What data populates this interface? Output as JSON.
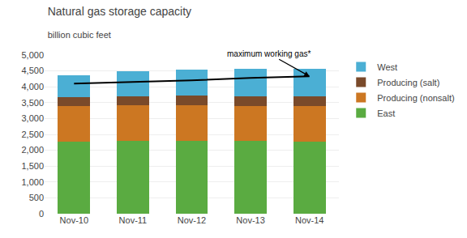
{
  "chart_data": {
    "type": "bar",
    "stacked": true,
    "title": "Natural gas storage capacity",
    "subtitle": "billion cubic feet",
    "categories": [
      "Nov-10",
      "Nov-11",
      "Nov-12",
      "Nov-13",
      "Nov-14"
    ],
    "series": [
      {
        "name": "East",
        "color": "#5aab41",
        "values": [
          2270,
          2300,
          2290,
          2300,
          2280
        ]
      },
      {
        "name": "Producing (nonsalt)",
        "color": "#cc7722",
        "values": [
          1130,
          1120,
          1140,
          1100,
          1110
        ]
      },
      {
        "name": "Producing (salt)",
        "color": "#7a4a2a",
        "values": [
          280,
          270,
          290,
          300,
          310
        ]
      },
      {
        "name": "West",
        "color": "#4bafd4",
        "values": [
          680,
          810,
          830,
          870,
          870
        ]
      },
      {
        "type": "line",
        "color": "#000000",
        "values": [
          4100,
          4150,
          4200,
          4280,
          4330
        ]
      }
    ],
    "annotations": [
      {
        "text": "maximum working gas*",
        "x": "Nov-14",
        "y": 4330
      }
    ],
    "ylim": [
      0,
      5000
    ],
    "yticks": [
      0,
      500,
      {
        "value": 1000,
        "label": "1,000"
      },
      {
        "value": 1500,
        "label": "1,500"
      },
      {
        "value": 2000,
        "label": "2,000"
      },
      {
        "value": 2500,
        "label": "2,500"
      },
      {
        "value": 3000,
        "label": "3,000"
      },
      {
        "value": 3500,
        "label": "3,500"
      },
      {
        "value": 4000,
        "label": "4,000"
      },
      {
        "value": 4500,
        "label": "4,500"
      },
      {
        "value": 5000,
        "label": "5,000"
      }
    ],
    "grid": true,
    "legend": "right"
  }
}
